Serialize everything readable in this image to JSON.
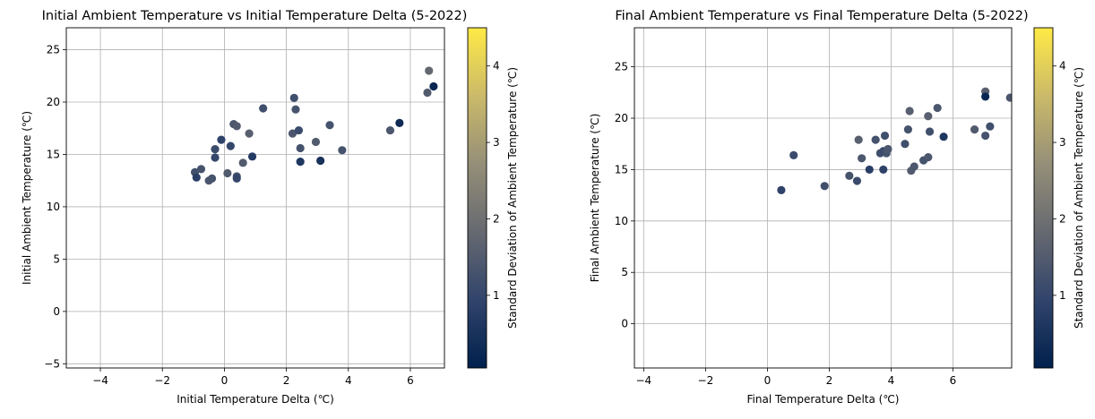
{
  "colormap": {
    "name": "cividis",
    "stops": [
      "#00204D",
      "#31446B",
      "#666970",
      "#958F78",
      "#CBBA69",
      "#FFEA46"
    ]
  },
  "chart_data": [
    {
      "type": "scatter",
      "title": "Initial Ambient Temperature vs Initial Temperature Delta (5-2022)",
      "xlabel": "Initial Temperature Delta (℃)",
      "ylabel": "Initial Ambient Temperature (℃)",
      "xlim": [
        -5.1,
        7.1
      ],
      "ylim": [
        -5.4,
        27.1
      ],
      "xticks": [
        -4,
        -2,
        0,
        2,
        4,
        6
      ],
      "yticks": [
        -5,
        0,
        5,
        10,
        15,
        20,
        25
      ],
      "grid": true,
      "colorbar": {
        "label": "Standard Deviation of Ambient Temperature (℃)",
        "min": 0.05,
        "max": 4.5,
        "ticks": [
          1,
          2,
          3,
          4
        ]
      },
      "points": [
        {
          "x": -0.95,
          "y": 13.3,
          "c": 1.2
        },
        {
          "x": -0.9,
          "y": 12.8,
          "c": 0.8
        },
        {
          "x": -0.75,
          "y": 13.6,
          "c": 1.3
        },
        {
          "x": -0.5,
          "y": 12.5,
          "c": 1.4
        },
        {
          "x": -0.4,
          "y": 12.7,
          "c": 1.3
        },
        {
          "x": -0.3,
          "y": 14.7,
          "c": 1.0
        },
        {
          "x": -0.3,
          "y": 15.5,
          "c": 1.1
        },
        {
          "x": -0.1,
          "y": 16.4,
          "c": 0.9
        },
        {
          "x": 0.1,
          "y": 13.2,
          "c": 1.5
        },
        {
          "x": 0.2,
          "y": 15.8,
          "c": 1.0
        },
        {
          "x": 0.3,
          "y": 17.9,
          "c": 1.4
        },
        {
          "x": 0.4,
          "y": 17.7,
          "c": 1.5
        },
        {
          "x": 0.4,
          "y": 12.9,
          "c": 1.2
        },
        {
          "x": 0.4,
          "y": 12.7,
          "c": 1.0
        },
        {
          "x": 0.6,
          "y": 14.2,
          "c": 1.5
        },
        {
          "x": 0.8,
          "y": 17.0,
          "c": 1.6
        },
        {
          "x": 0.9,
          "y": 14.8,
          "c": 0.7
        },
        {
          "x": 1.25,
          "y": 19.4,
          "c": 1.2
        },
        {
          "x": 2.2,
          "y": 17.0,
          "c": 1.4
        },
        {
          "x": 2.25,
          "y": 20.4,
          "c": 1.2
        },
        {
          "x": 2.3,
          "y": 19.3,
          "c": 1.3
        },
        {
          "x": 2.4,
          "y": 17.3,
          "c": 1.1
        },
        {
          "x": 2.45,
          "y": 14.3,
          "c": 0.6
        },
        {
          "x": 2.45,
          "y": 15.6,
          "c": 1.3
        },
        {
          "x": 2.95,
          "y": 16.2,
          "c": 1.5
        },
        {
          "x": 3.1,
          "y": 14.4,
          "c": 0.5
        },
        {
          "x": 3.4,
          "y": 17.8,
          "c": 1.3
        },
        {
          "x": 3.8,
          "y": 15.4,
          "c": 1.3
        },
        {
          "x": 5.35,
          "y": 17.3,
          "c": 1.4
        },
        {
          "x": 5.65,
          "y": 18.0,
          "c": 0.3
        },
        {
          "x": 6.55,
          "y": 20.9,
          "c": 1.5
        },
        {
          "x": 6.6,
          "y": 23.0,
          "c": 1.8
        },
        {
          "x": 6.75,
          "y": 21.5,
          "c": 0.2
        }
      ]
    },
    {
      "type": "scatter",
      "title": "Final Ambient Temperature vs Final Temperature Delta (5-2022)",
      "xlabel": "Final Temperature Delta (℃)",
      "ylabel": "Final Ambient Temperature (℃)",
      "xlim": [
        -4.3,
        7.9
      ],
      "ylim": [
        -4.3,
        28.8
      ],
      "xticks": [
        -4,
        -2,
        0,
        2,
        4,
        6
      ],
      "yticks": [
        0,
        5,
        10,
        15,
        20,
        25
      ],
      "grid": true,
      "colorbar": {
        "label": "Standard Deviation of Ambient Temperature (℃)",
        "min": 0.05,
        "max": 4.5,
        "ticks": [
          1,
          2,
          3,
          4
        ]
      },
      "points": [
        {
          "x": 0.45,
          "y": 13.0,
          "c": 0.9
        },
        {
          "x": 0.85,
          "y": 16.4,
          "c": 1.1
        },
        {
          "x": 1.85,
          "y": 13.4,
          "c": 1.2
        },
        {
          "x": 2.65,
          "y": 14.4,
          "c": 1.3
        },
        {
          "x": 2.9,
          "y": 13.9,
          "c": 1.1
        },
        {
          "x": 2.95,
          "y": 17.9,
          "c": 1.6
        },
        {
          "x": 3.05,
          "y": 16.1,
          "c": 1.4
        },
        {
          "x": 3.3,
          "y": 15.0,
          "c": 0.8
        },
        {
          "x": 3.5,
          "y": 17.9,
          "c": 1.3
        },
        {
          "x": 3.65,
          "y": 16.6,
          "c": 1.2
        },
        {
          "x": 3.75,
          "y": 16.8,
          "c": 1.1
        },
        {
          "x": 3.75,
          "y": 15.0,
          "c": 0.9
        },
        {
          "x": 3.8,
          "y": 18.3,
          "c": 1.2
        },
        {
          "x": 3.85,
          "y": 16.6,
          "c": 1.3
        },
        {
          "x": 3.9,
          "y": 17.0,
          "c": 1.4
        },
        {
          "x": 4.45,
          "y": 17.5,
          "c": 1.2
        },
        {
          "x": 4.55,
          "y": 18.9,
          "c": 1.3
        },
        {
          "x": 4.6,
          "y": 20.7,
          "c": 1.6
        },
        {
          "x": 4.65,
          "y": 14.9,
          "c": 1.5
        },
        {
          "x": 4.75,
          "y": 15.3,
          "c": 1.4
        },
        {
          "x": 5.05,
          "y": 15.9,
          "c": 1.3
        },
        {
          "x": 5.2,
          "y": 20.2,
          "c": 1.6
        },
        {
          "x": 5.2,
          "y": 16.2,
          "c": 1.4
        },
        {
          "x": 5.25,
          "y": 18.7,
          "c": 1.2
        },
        {
          "x": 5.5,
          "y": 21.0,
          "c": 1.4
        },
        {
          "x": 5.7,
          "y": 18.2,
          "c": 0.6
        },
        {
          "x": 6.7,
          "y": 18.9,
          "c": 1.5
        },
        {
          "x": 7.05,
          "y": 22.6,
          "c": 1.6
        },
        {
          "x": 7.05,
          "y": 22.1,
          "c": 0.2
        },
        {
          "x": 7.05,
          "y": 18.3,
          "c": 1.3
        },
        {
          "x": 7.2,
          "y": 19.2,
          "c": 1.2
        },
        {
          "x": 7.85,
          "y": 22.0,
          "c": 1.4
        }
      ]
    }
  ]
}
